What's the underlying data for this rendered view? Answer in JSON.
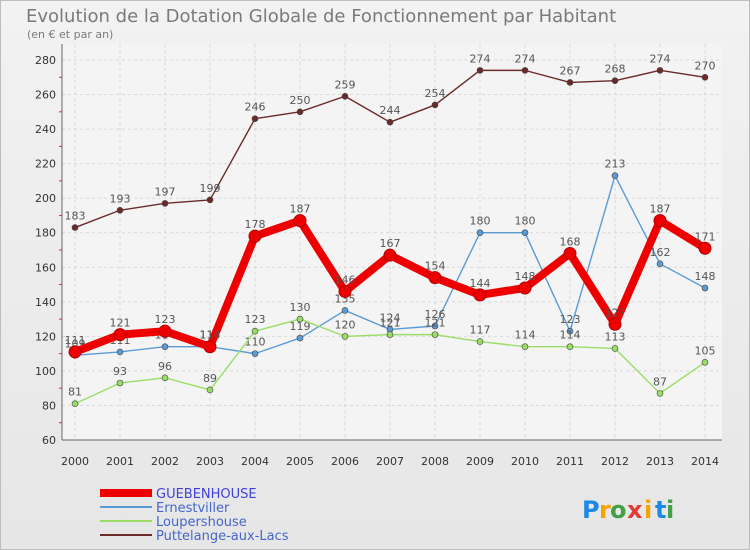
{
  "chart_data": {
    "type": "line",
    "title": "Evolution de la Dotation Globale de Fonctionnement par Habitant",
    "subtitle": "(en € et par an)",
    "xlabel": "",
    "ylabel": "",
    "x": [
      "2000",
      "2001",
      "2002",
      "2003",
      "2004",
      "2005",
      "2006",
      "2007",
      "2008",
      "2009",
      "2010",
      "2011",
      "2012",
      "2013",
      "2014"
    ],
    "yticks": [
      "60",
      "80",
      "100",
      "120",
      "140",
      "160",
      "180",
      "200",
      "220",
      "240",
      "260",
      "280"
    ],
    "ylim": [
      60,
      280
    ],
    "grid": true,
    "legend_position": "bottom-left",
    "series": [
      {
        "name": "GUEBENHOUSE",
        "color": "#ee0000",
        "values": [
          111,
          121,
          123,
          114,
          178,
          187,
          146,
          167,
          154,
          144,
          148,
          168,
          127,
          187,
          171
        ],
        "labels": [
          "111",
          "121",
          "123",
          "114",
          "178",
          "187",
          "146",
          "167",
          "154",
          "144",
          "148",
          "168",
          "127",
          "187",
          "171"
        ]
      },
      {
        "name": "Ernestviller",
        "color": "#5b9bd5",
        "values": [
          109,
          111,
          114,
          114,
          110,
          119,
          135,
          124,
          126,
          180,
          180,
          123,
          213,
          162,
          148
        ],
        "labels": [
          "109",
          "111",
          "114",
          "114",
          "110",
          "119",
          "135",
          "124",
          "126",
          "180",
          "180",
          "123",
          "213",
          "162",
          "148"
        ]
      },
      {
        "name": "Loupershouse",
        "color": "#99dd66",
        "values": [
          81,
          93,
          96,
          89,
          123,
          130,
          120,
          121,
          121,
          117,
          114,
          114,
          113,
          87,
          105
        ],
        "labels": [
          "81",
          "93",
          "96",
          "89",
          "123",
          "130",
          "120",
          "121",
          "121",
          "117",
          "114",
          "114",
          "113",
          "87",
          "105"
        ]
      },
      {
        "name": "Puttelange-aux-Lacs",
        "color": "#6b2a2a",
        "values": [
          183,
          193,
          197,
          199,
          246,
          250,
          259,
          244,
          254,
          274,
          274,
          267,
          268,
          274,
          270
        ],
        "labels": [
          "183",
          "193",
          "197",
          "199",
          "246",
          "250",
          "259",
          "244",
          "254",
          "274",
          "274",
          "267",
          "268",
          "274",
          "270"
        ]
      }
    ]
  },
  "logo": {
    "letters": [
      "P",
      "r",
      "o",
      "x",
      "i",
      "t",
      "i"
    ],
    "colors": [
      "#1e88e5",
      "#f4a300",
      "#43a047",
      "#e53935",
      "#f4a300",
      "#1e88e5",
      "#43a047"
    ]
  }
}
